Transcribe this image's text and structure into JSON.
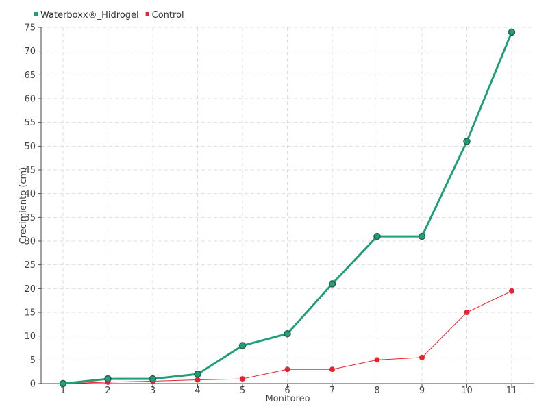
{
  "chart_data": {
    "type": "line",
    "title": "",
    "xlabel": "Monitoreo",
    "ylabel": "Crecimiento (cm)",
    "categories": [
      "1",
      "2",
      "3",
      "4",
      "5",
      "6",
      "7",
      "8",
      "9",
      "10",
      "11"
    ],
    "ylim": [
      0,
      75
    ],
    "yticks": [
      "0",
      "5",
      "10",
      "15",
      "20",
      "25",
      "30",
      "35",
      "40",
      "45",
      "50",
      "55",
      "60",
      "65",
      "70",
      "75"
    ],
    "grid": true,
    "legend_position": "top-left",
    "series": [
      {
        "name": "Waterboxx®_Hidrogel",
        "color": "#1f9e7a",
        "values": [
          0,
          1,
          1,
          2,
          8,
          10.5,
          21,
          31,
          31,
          51,
          74
        ]
      },
      {
        "name": "Control",
        "color": "#e8222e",
        "values": [
          0,
          0.3,
          0.5,
          0.8,
          1,
          3,
          3,
          5,
          5.5,
          15,
          19.5
        ]
      }
    ]
  }
}
